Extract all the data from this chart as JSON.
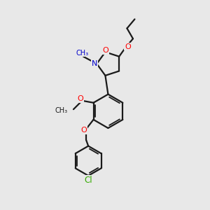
{
  "bg_color": "#e8e8e8",
  "bond_color": "#1a1a1a",
  "oxygen_color": "#ff0000",
  "nitrogen_color": "#0000cc",
  "chlorine_color": "#33aa00",
  "bond_width": 1.6,
  "figsize": [
    3.0,
    3.0
  ],
  "dpi": 100,
  "xlim": [
    0,
    10
  ],
  "ylim": [
    0,
    10
  ]
}
